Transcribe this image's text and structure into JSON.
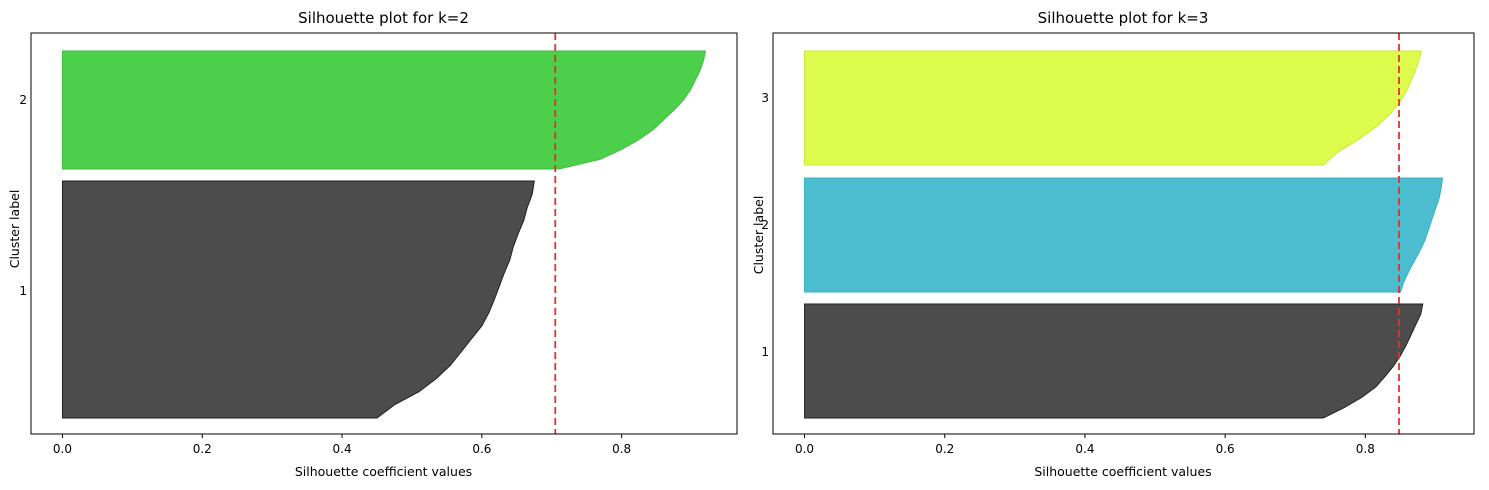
{
  "chart_data": [
    {
      "type": "area",
      "title": "Silhouette plot for k=2",
      "xlabel": "Silhouette coefficient values",
      "ylabel": "Cluster label",
      "xlim": [
        -0.045,
        0.965
      ],
      "xticks": [
        "0.0",
        "0.2",
        "0.4",
        "0.6",
        "0.8"
      ],
      "xtick_values": [
        0,
        0.2,
        0.4,
        0.6,
        0.8
      ],
      "grid": false,
      "average_silhouette": 0.705,
      "average_line_color": "#e03131",
      "clusters": [
        {
          "label": "1",
          "color": "#4c4c4c",
          "edge_color": "#222222",
          "max_value": 0.675,
          "min_value": 0.45,
          "profile": [
            0.675,
            0.672,
            0.665,
            0.66,
            0.652,
            0.645,
            0.64,
            0.632,
            0.625,
            0.618,
            0.61,
            0.6,
            0.585,
            0.57,
            0.555,
            0.535,
            0.51,
            0.475,
            0.45
          ]
        },
        {
          "label": "2",
          "color": "#4cd04c",
          "edge_color": "#3dbf3d",
          "max_value": 0.92,
          "min_value": 0.71,
          "profile": [
            0.92,
            0.917,
            0.912,
            0.905,
            0.898,
            0.888,
            0.875,
            0.86,
            0.845,
            0.825,
            0.8,
            0.77,
            0.71
          ]
        }
      ]
    },
    {
      "type": "area",
      "title": "Silhouette plot for k=3",
      "xlabel": "Silhouette coefficient values",
      "ylabel": "Cluster label",
      "xlim": [
        -0.045,
        0.955
      ],
      "xticks": [
        "0.0",
        "0.2",
        "0.4",
        "0.6",
        "0.8"
      ],
      "xtick_values": [
        0,
        0.2,
        0.4,
        0.6,
        0.8
      ],
      "grid": false,
      "average_silhouette": 0.848,
      "average_line_color": "#e03131",
      "clusters": [
        {
          "label": "1",
          "color": "#4c4c4c",
          "edge_color": "#222222",
          "max_value": 0.882,
          "min_value": 0.74,
          "profile": [
            0.882,
            0.879,
            0.872,
            0.865,
            0.858,
            0.85,
            0.84,
            0.828,
            0.815,
            0.795,
            0.77,
            0.74
          ]
        },
        {
          "label": "2",
          "color": "#4bbdcf",
          "edge_color": "#34b0c6",
          "max_value": 0.91,
          "min_value": 0.85,
          "profile": [
            0.91,
            0.908,
            0.905,
            0.9,
            0.895,
            0.89,
            0.885,
            0.878,
            0.87,
            0.862,
            0.855,
            0.85
          ]
        },
        {
          "label": "3",
          "color": "#dcfb4c",
          "edge_color": "#cde83a",
          "max_value": 0.88,
          "min_value": 0.74,
          "profile": [
            0.88,
            0.875,
            0.868,
            0.86,
            0.85,
            0.835,
            0.815,
            0.79,
            0.76,
            0.74
          ]
        }
      ]
    }
  ]
}
